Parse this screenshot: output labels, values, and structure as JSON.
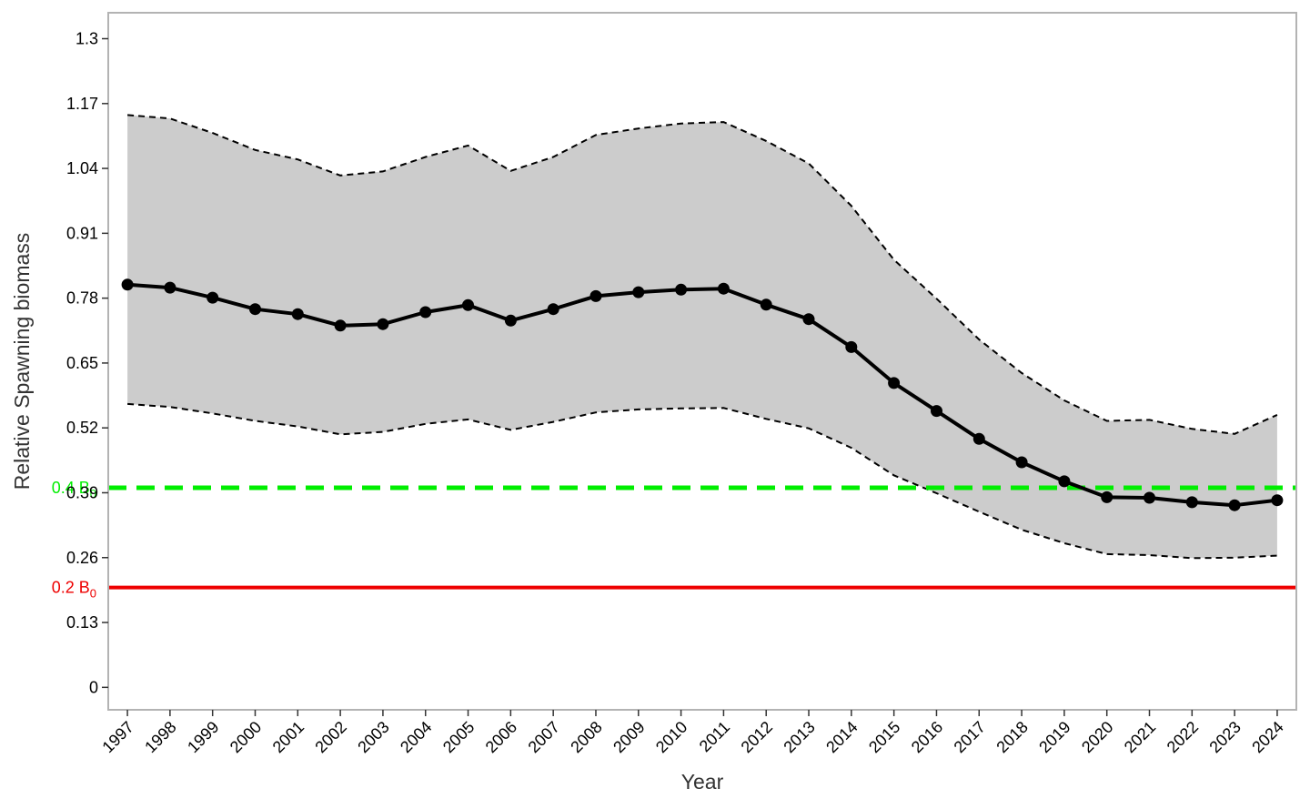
{
  "chart_data": {
    "type": "line",
    "title": "",
    "xlabel": "Year",
    "ylabel": "Relative Spawning biomass",
    "x": [
      1997,
      1998,
      1999,
      2000,
      2001,
      2002,
      2003,
      2004,
      2005,
      2006,
      2007,
      2008,
      2009,
      2010,
      2011,
      2012,
      2013,
      2014,
      2015,
      2016,
      2017,
      2018,
      2019,
      2020,
      2021,
      2022,
      2023,
      2024
    ],
    "x_tick_labels": [
      "1997",
      "1998",
      "1999",
      "2000",
      "2001",
      "2002",
      "2003",
      "2004",
      "2005",
      "2006",
      "2007",
      "2008",
      "2009",
      "2010",
      "2011",
      "2012",
      "2013",
      "2014",
      "2015",
      "2016",
      "2017",
      "2018",
      "2019",
      "2020",
      "2021",
      "2022",
      "2023",
      "2024"
    ],
    "y_ticks": [
      0,
      0.13,
      0.26,
      0.39,
      0.52,
      0.65,
      0.78,
      0.91,
      1.04,
      1.17,
      1.3
    ],
    "y_tick_labels": [
      "0",
      "0.13",
      "0.26",
      "0.39",
      "0.52",
      "0.65",
      "0.78",
      "0.91",
      "1.04",
      "1.17",
      "1.3"
    ],
    "ylim": [
      -0.045,
      1.352
    ],
    "xlim": [
      1996.55,
      2024.45
    ],
    "series": [
      {
        "values": [
          0.807,
          0.801,
          0.781,
          0.758,
          0.748,
          0.725,
          0.728,
          0.752,
          0.766,
          0.735,
          0.758,
          0.784,
          0.792,
          0.797,
          0.799,
          0.767,
          0.738,
          0.682,
          0.61,
          0.554,
          0.498,
          0.451,
          0.413,
          0.381,
          0.38,
          0.371,
          0.365,
          0.375
        ],
        "color": "#000000",
        "style": "solid",
        "markers": true
      },
      {
        "values": [
          1.147,
          1.14,
          1.111,
          1.077,
          1.058,
          1.026,
          1.034,
          1.063,
          1.086,
          1.035,
          1.063,
          1.107,
          1.12,
          1.13,
          1.133,
          1.095,
          1.05,
          0.965,
          0.857,
          0.779,
          0.697,
          0.63,
          0.575,
          0.534,
          0.536,
          0.518,
          0.508,
          0.546
        ],
        "color": "#000000",
        "style": "dashed",
        "markers": false
      },
      {
        "values": [
          0.568,
          0.562,
          0.549,
          0.534,
          0.523,
          0.507,
          0.512,
          0.528,
          0.537,
          0.516,
          0.532,
          0.551,
          0.557,
          0.559,
          0.56,
          0.538,
          0.519,
          0.48,
          0.425,
          0.389,
          0.352,
          0.316,
          0.289,
          0.267,
          0.265,
          0.259,
          0.26,
          0.264
        ]
      }
    ],
    "interval_fill": "#cccccc",
    "reference_lines": [
      {
        "value": 0.4,
        "label_main": "0.4 B",
        "label_sub": "0",
        "color": "#00ee00",
        "style": "dashed"
      },
      {
        "value": 0.2,
        "label_main": "0.2 B",
        "label_sub": "0",
        "color": "#ee0000",
        "style": "solid"
      }
    ],
    "grid": false,
    "legend": "none",
    "frame_color": "#b3b3b3"
  }
}
